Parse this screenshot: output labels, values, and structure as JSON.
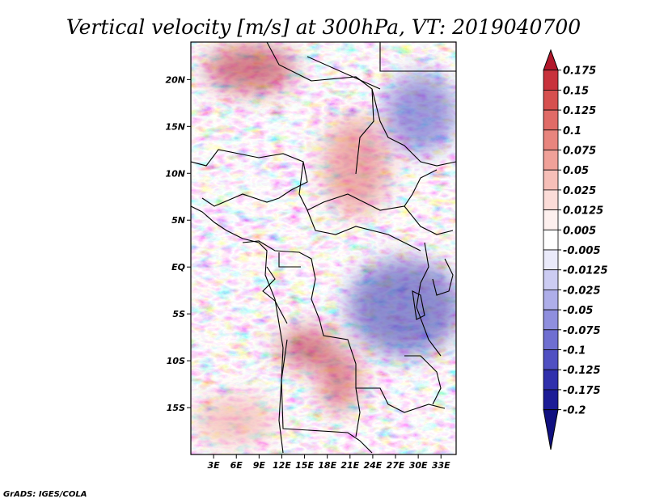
{
  "chart_data": {
    "type": "heatmap",
    "title": "Vertical velocity [m/s] at 300hPa, VT: 2019040700",
    "variable": "Vertical velocity",
    "units": "m/s",
    "level": "300hPa",
    "valid_time": "2019040700",
    "xlabel": "",
    "ylabel": "",
    "x_range": [
      0,
      35
    ],
    "y_range": [
      -20,
      24
    ],
    "x_ticks": [
      3,
      6,
      9,
      12,
      15,
      18,
      21,
      24,
      27,
      30,
      33
    ],
    "x_tick_labels": [
      "3E",
      "6E",
      "9E",
      "12E",
      "15E",
      "18E",
      "21E",
      "24E",
      "27E",
      "30E",
      "33E"
    ],
    "y_ticks": [
      20,
      15,
      10,
      5,
      0,
      -5,
      -10,
      -15
    ],
    "y_tick_labels": [
      "20N",
      "15N",
      "10N",
      "5N",
      "EQ",
      "5S",
      "10S",
      "15S"
    ],
    "colorbar": {
      "labels": [
        "0.175",
        "0.15",
        "0.125",
        "0.1",
        "0.075",
        "0.05",
        "0.025",
        "0.0125",
        "0.005",
        "-0.005",
        "-0.0125",
        "-0.025",
        "-0.05",
        "-0.075",
        "-0.1",
        "-0.125",
        "-0.175",
        "-0.2"
      ],
      "colors": [
        "#b2182b",
        "#c8323c",
        "#d6504f",
        "#e06b67",
        "#e8857e",
        "#f0a199",
        "#f6bfb8",
        "#fbdcd8",
        "#fdf0ee",
        "#ffffff",
        "#eaeafa",
        "#ccccf2",
        "#aeaee9",
        "#8f8fde",
        "#6f6fd1",
        "#5050c2",
        "#3030ac",
        "#1c1c96",
        "#101080"
      ]
    }
  },
  "credit": "GrADS: IGES/COLA"
}
